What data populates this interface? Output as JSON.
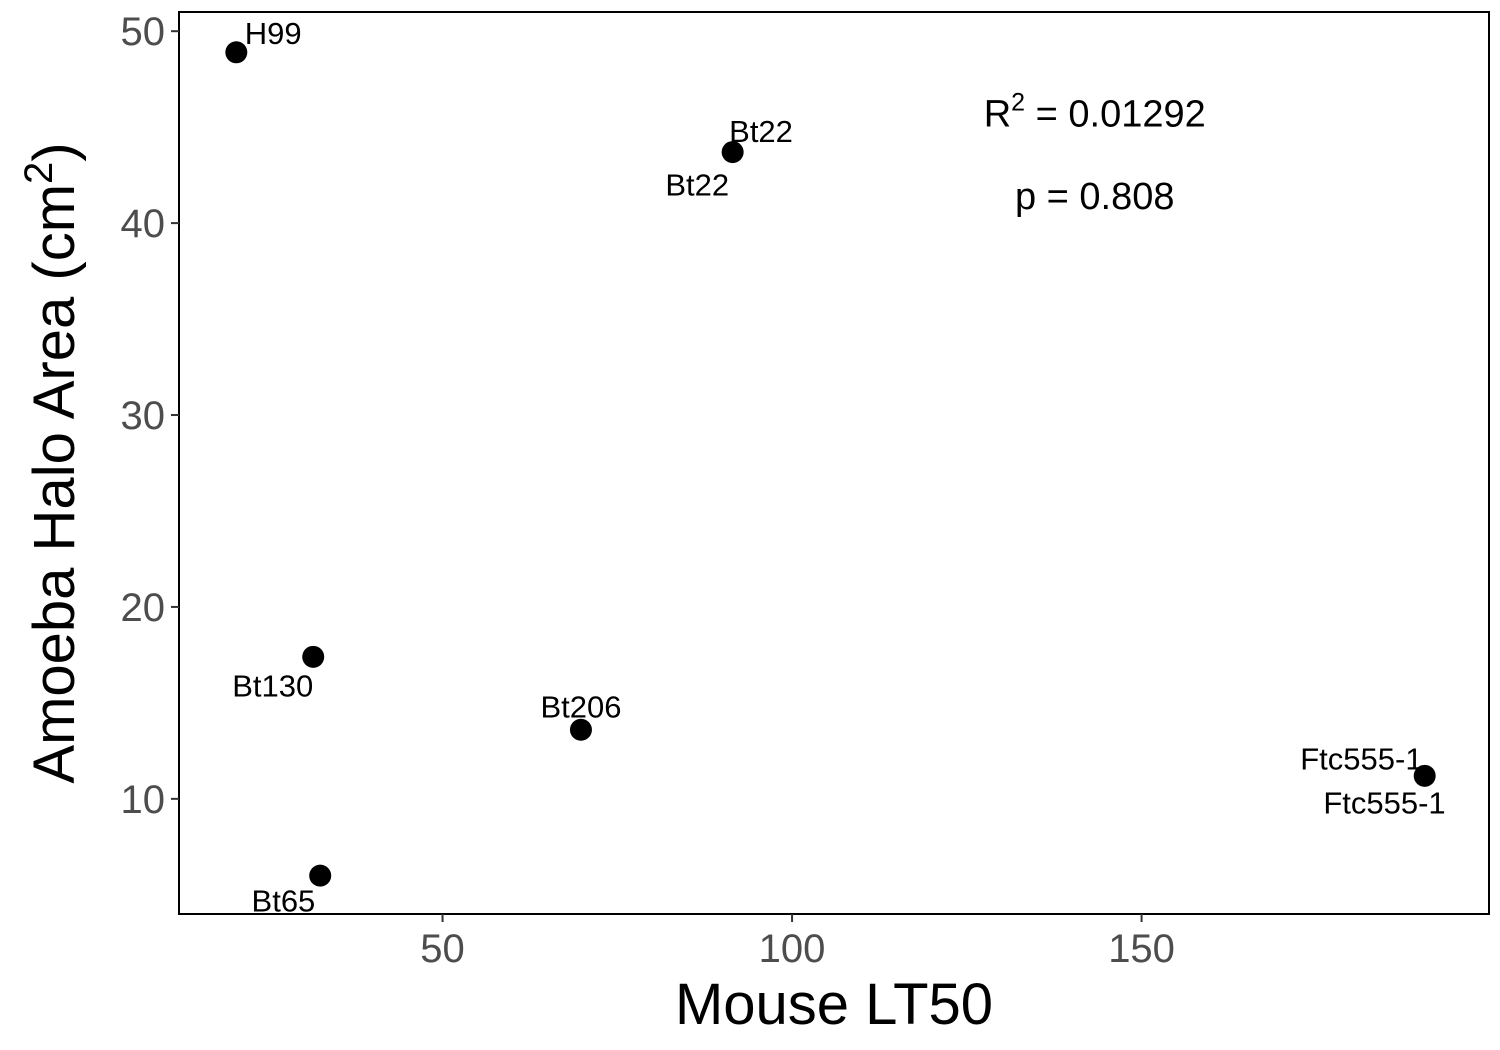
{
  "chart_data": {
    "type": "scatter",
    "title": "",
    "xlabel": "Mouse LT50",
    "ylabel_main": "Amoeba Halo Area (cm",
    "ylabel_sup": "2",
    "ylabel_close": ")",
    "xlim": [
      12.3,
      199.7
    ],
    "ylim": [
      4.0,
      51.0
    ],
    "xticks": [
      50,
      100,
      150
    ],
    "yticks": [
      10,
      20,
      30,
      40,
      50
    ],
    "grid": false,
    "legend": "none",
    "colors": {
      "point": "#000000",
      "panel_border": "#000000",
      "tick_text": "#4d4d4d"
    },
    "points": [
      {
        "name": "H99",
        "x": 20.5,
        "y": 48.9
      },
      {
        "name": "Bt22",
        "x": 91.5,
        "y": 43.7
      },
      {
        "name": "Bt130",
        "x": 31.5,
        "y": 17.4
      },
      {
        "name": "Bt206",
        "x": 69.8,
        "y": 13.6
      },
      {
        "name": "Ftc555-1",
        "x": 190.5,
        "y": 11.2
      },
      {
        "name": "Bt65",
        "x": 32.5,
        "y": 6.0
      }
    ],
    "labels": [
      {
        "text": "H99",
        "x": 21.7,
        "y": 49.9,
        "anchor": "start"
      },
      {
        "text": "Bt22",
        "x": 91.0,
        "y": 44.8,
        "anchor": "start"
      },
      {
        "text": "Bt22",
        "x": 91.0,
        "y": 42.0,
        "anchor": "end"
      },
      {
        "text": "Bt130",
        "x": 31.5,
        "y": 15.9,
        "anchor": "end"
      },
      {
        "text": "Bt206",
        "x": 69.8,
        "y": 14.8,
        "anchor": "middle"
      },
      {
        "text": "Ftc555-1",
        "x": 190.2,
        "y": 12.1,
        "anchor": "end"
      },
      {
        "text": "Ftc555-1",
        "x": 193.5,
        "y": 9.8,
        "anchor": "end"
      },
      {
        "text": "Bt65",
        "x": 31.8,
        "y": 4.7,
        "anchor": "end"
      }
    ],
    "annotations": {
      "r2_label": "R",
      "r2_sup": "2",
      "r2_value": " = 0.01292",
      "r2_x": 143.3,
      "r2_y": 45.7,
      "p_text": "p = 0.808",
      "p_x": 143.3,
      "p_y": 41.4
    }
  }
}
